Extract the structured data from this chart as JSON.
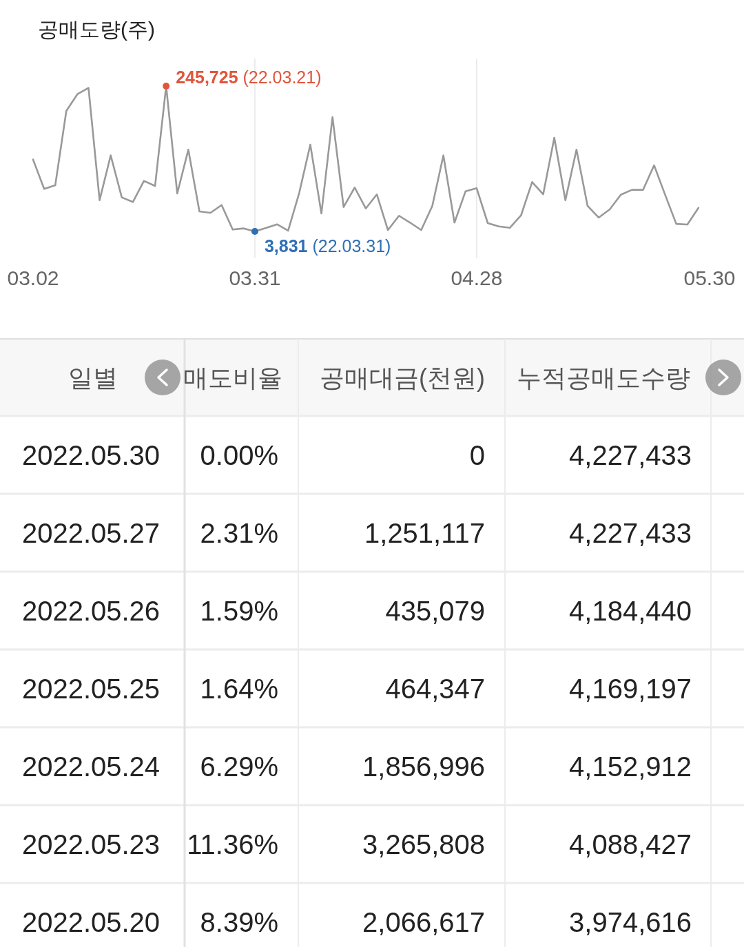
{
  "chart_data": [
    {
      "type": "line",
      "title": "공매도량(주)",
      "categories": [
        "03.02",
        null,
        null,
        null,
        null,
        null,
        null,
        null,
        null,
        null,
        null,
        null,
        null,
        null,
        null,
        null,
        null,
        null,
        null,
        null,
        "03.31",
        null,
        null,
        null,
        null,
        null,
        null,
        null,
        null,
        null,
        null,
        null,
        null,
        null,
        null,
        null,
        null,
        null,
        null,
        null,
        "04.28",
        null,
        null,
        null,
        null,
        null,
        null,
        null,
        null,
        null,
        null,
        null,
        null,
        null,
        null,
        null,
        null,
        null,
        null,
        null,
        null,
        "05.30"
      ],
      "series": [
        {
          "type": "line",
          "color": "#999999",
          "values": [
            123400,
            74600,
            80600,
            204500,
            232300,
            242600,
            55800,
            130300,
            60400,
            52800,
            87900,
            79500,
            245725,
            66900,
            139900,
            37100,
            34800,
            47700,
            6900,
            8800,
            3831,
            9600,
            15600,
            5000,
            68000,
            148300,
            33600,
            194100,
            44300,
            76900,
            42000,
            65400,
            6100,
            29900,
            18400,
            6100,
            46300,
            130300,
            18400,
            70700,
            75700,
            17600,
            12200,
            9900,
            30500,
            86000,
            65700,
            159700,
            55800,
            139900,
            46300,
            26800,
            40500,
            64900,
            73000,
            73000,
            113811,
            64485,
            16285,
            15243,
            42993,
            null
          ]
        },
        {
          "type": "scatter",
          "color": "#e0553b",
          "values": [
            null,
            null,
            null,
            null,
            null,
            null,
            null,
            null,
            null,
            null,
            null,
            null,
            245725,
            null,
            null,
            null,
            null,
            null,
            null,
            null,
            null,
            null,
            null,
            null,
            null,
            null,
            null,
            null,
            null,
            null,
            null,
            null,
            null,
            null,
            null,
            null,
            null,
            null,
            null,
            null,
            null,
            null,
            null,
            null,
            null,
            null,
            null,
            null,
            null,
            null,
            null,
            null,
            null,
            null,
            null,
            null,
            null,
            null,
            null,
            null,
            null,
            null
          ],
          "value_labels": [
            null,
            null,
            null,
            null,
            null,
            null,
            null,
            null,
            null,
            null,
            null,
            null,
            "245,725 (22.03.21)",
            null,
            null,
            null,
            null,
            null,
            null,
            null,
            null,
            null,
            null,
            null,
            null,
            null,
            null,
            null,
            null,
            null,
            null,
            null,
            null,
            null,
            null,
            null,
            null,
            null,
            null,
            null,
            null,
            null,
            null,
            null,
            null,
            null,
            null,
            null,
            null,
            null,
            null,
            null,
            null,
            null,
            null,
            null,
            null,
            null,
            null,
            null,
            null,
            null
          ]
        },
        {
          "type": "scatter",
          "color": "#2f6fb5",
          "values": [
            null,
            null,
            null,
            null,
            null,
            null,
            null,
            null,
            null,
            null,
            null,
            null,
            null,
            null,
            null,
            null,
            null,
            null,
            null,
            null,
            3831,
            null,
            null,
            null,
            null,
            null,
            null,
            null,
            null,
            null,
            null,
            null,
            null,
            null,
            null,
            null,
            null,
            null,
            null,
            null,
            null,
            null,
            null,
            null,
            null,
            null,
            null,
            null,
            null,
            null,
            null,
            null,
            null,
            null,
            null,
            null,
            null,
            null,
            null,
            null,
            null,
            null
          ],
          "value_labels": [
            null,
            null,
            null,
            null,
            null,
            null,
            null,
            null,
            null,
            null,
            null,
            null,
            null,
            null,
            null,
            null,
            null,
            null,
            null,
            null,
            "3,831 (22.03.31)",
            null,
            null,
            null,
            null,
            null,
            null,
            null,
            null,
            null,
            null,
            null,
            null,
            null,
            null,
            null,
            null,
            null,
            null,
            null,
            null,
            null,
            null,
            null,
            null,
            null,
            null,
            null,
            null,
            null,
            null,
            null,
            null,
            null,
            null,
            null,
            null,
            null,
            null,
            null,
            null,
            null
          ]
        }
      ],
      "grid": "x"
    },
    {
      "type": "other",
      "annotations": [
        "일별",
        "매도비율",
        "공매대금(천원)",
        "누적공매도수량",
        "2022.05.30",
        "0.00%",
        "0",
        "4,227,433",
        "2022.05.27",
        "2.31%",
        "1,251,117",
        "4,227,433",
        "2022.05.26",
        "1.59%",
        "435,079",
        "4,184,440",
        "2022.05.25",
        "1.64%",
        "464,347",
        "4,169,197",
        "2022.05.24",
        "6.29%",
        "1,856,996",
        "4,152,912",
        "2022.05.23",
        "11.36%",
        "3,265,808",
        "4,088,427",
        "2022.05.20",
        "8.39%",
        "2,066,617",
        "3,974,616"
      ]
    }
  ]
}
